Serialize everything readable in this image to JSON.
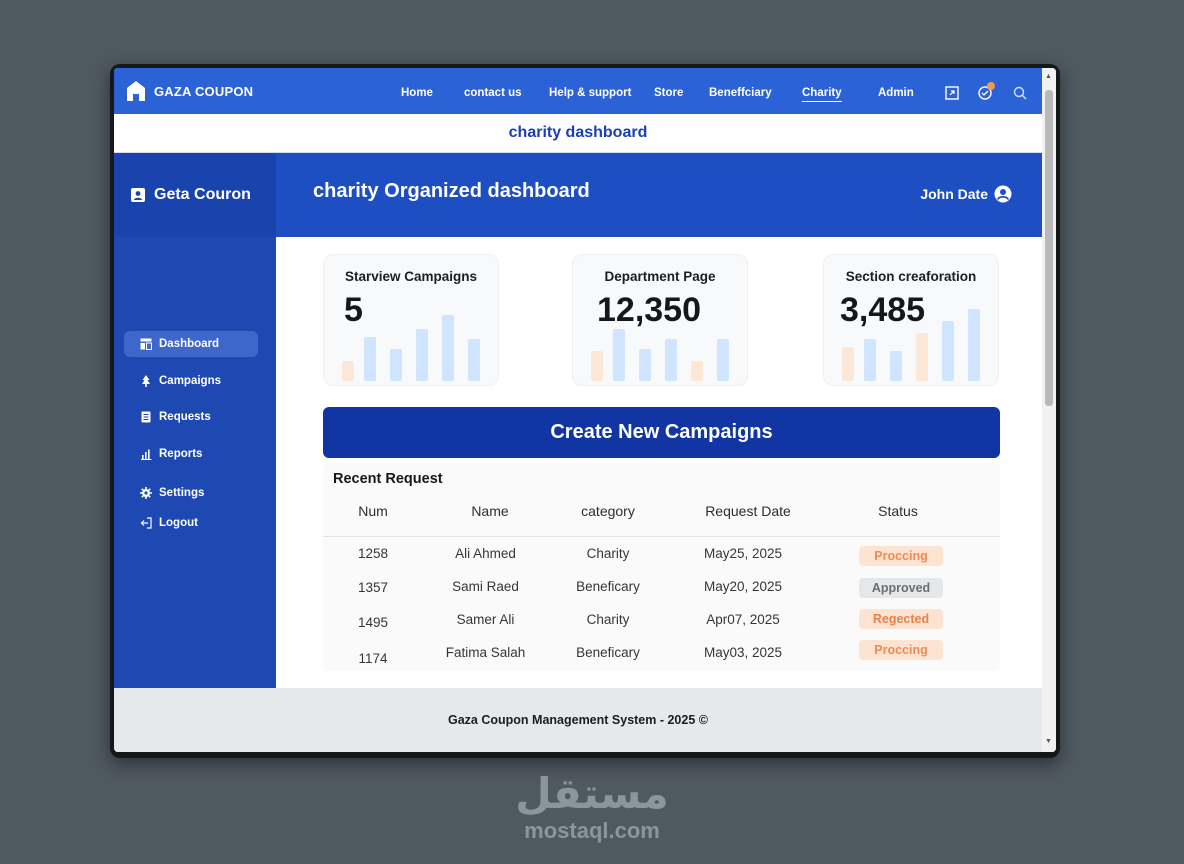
{
  "nav": {
    "brand": "GAZA COUPON",
    "links": [
      "Home",
      "contact us",
      "Help & support",
      "Store",
      "Beneffciary",
      "Charity",
      "Admin"
    ],
    "active": "Charity"
  },
  "subheader": {
    "title": "charity dashboard"
  },
  "sidebar": {
    "title": "Geta Couron",
    "items": [
      {
        "label": "Dashboard",
        "icon": "dashboard-icon"
      },
      {
        "label": "Campaigns",
        "icon": "tree-icon"
      },
      {
        "label": "Requests",
        "icon": "document-icon"
      },
      {
        "label": "Reports",
        "icon": "bar-chart-icon"
      },
      {
        "label": "Settings",
        "icon": "gear-icon"
      },
      {
        "label": "Logout",
        "icon": "logout-icon"
      }
    ]
  },
  "header": {
    "title": "charity Organized dashboard",
    "user": "John Date"
  },
  "cards": [
    {
      "title": "Starview Campaigns",
      "value": "5"
    },
    {
      "title": "Department Page",
      "value": "12,350"
    },
    {
      "title": "Section creaforation",
      "value": "3,485"
    }
  ],
  "create_button": "Create New Campaigns",
  "table": {
    "title": "Recent Request",
    "columns": [
      "Num",
      "Name",
      "category",
      "Request Date",
      "Status"
    ],
    "rows": [
      {
        "num": "1258",
        "name": "Ali Ahmed",
        "category": "Charity",
        "date": "May25, 2025",
        "status": "Proccing"
      },
      {
        "num": "1357",
        "name": "Sami Raed",
        "category": "Beneficary",
        "date": "May20, 2025",
        "status": "Approved"
      },
      {
        "num": "1495",
        "name": "Samer Ali",
        "category": "Charity",
        "date": "Apr07, 2025",
        "status": "Regected"
      },
      {
        "num": "1174",
        "name": "Fatima Salah",
        "category": "Beneficary",
        "date": "May03, 2025",
        "status": "Proccing"
      }
    ]
  },
  "footer": "Gaza Coupon Management System - 2025 ©",
  "watermark": {
    "arabic": "مستقل",
    "latin": "mostaql.com"
  },
  "colors": {
    "primary": "#2b63d6",
    "sidebar": "#1e49b3",
    "button": "#1136a4",
    "status_orange": "#ef8a55"
  }
}
